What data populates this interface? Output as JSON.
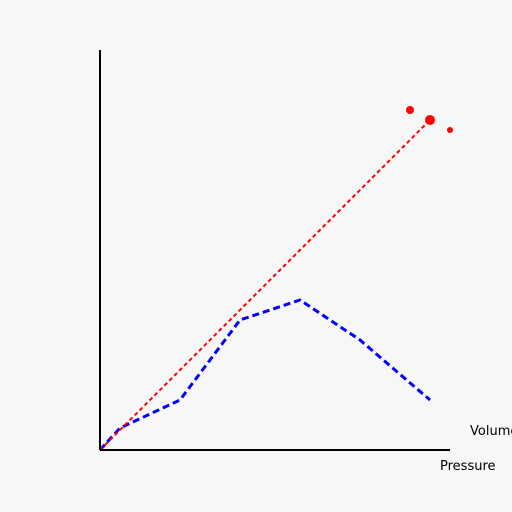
{
  "chart_data": {
    "type": "line",
    "title": "",
    "xlabel": "Pressure",
    "ylabel": "Volume",
    "grid": false,
    "xlim": [
      0,
      350
    ],
    "ylim": [
      0,
      400
    ],
    "series": [
      {
        "color": "#0000ff",
        "style": "dashed",
        "x": [
          0,
          20,
          80,
          140,
          200,
          260,
          330
        ],
        "y": [
          0,
          22,
          50,
          130,
          150,
          110,
          50
        ]
      },
      {
        "color": "#ff0000",
        "style": "dotted",
        "x": [
          0,
          330
        ],
        "y": [
          0,
          330
        ]
      }
    ],
    "points": [
      {
        "color": "#ff0000",
        "x": 310,
        "y": 340,
        "size": 4
      },
      {
        "color": "#ff0000",
        "x": 330,
        "y": 330,
        "size": 5
      },
      {
        "color": "#ff0000",
        "x": 350,
        "y": 320,
        "size": 3
      }
    ]
  }
}
